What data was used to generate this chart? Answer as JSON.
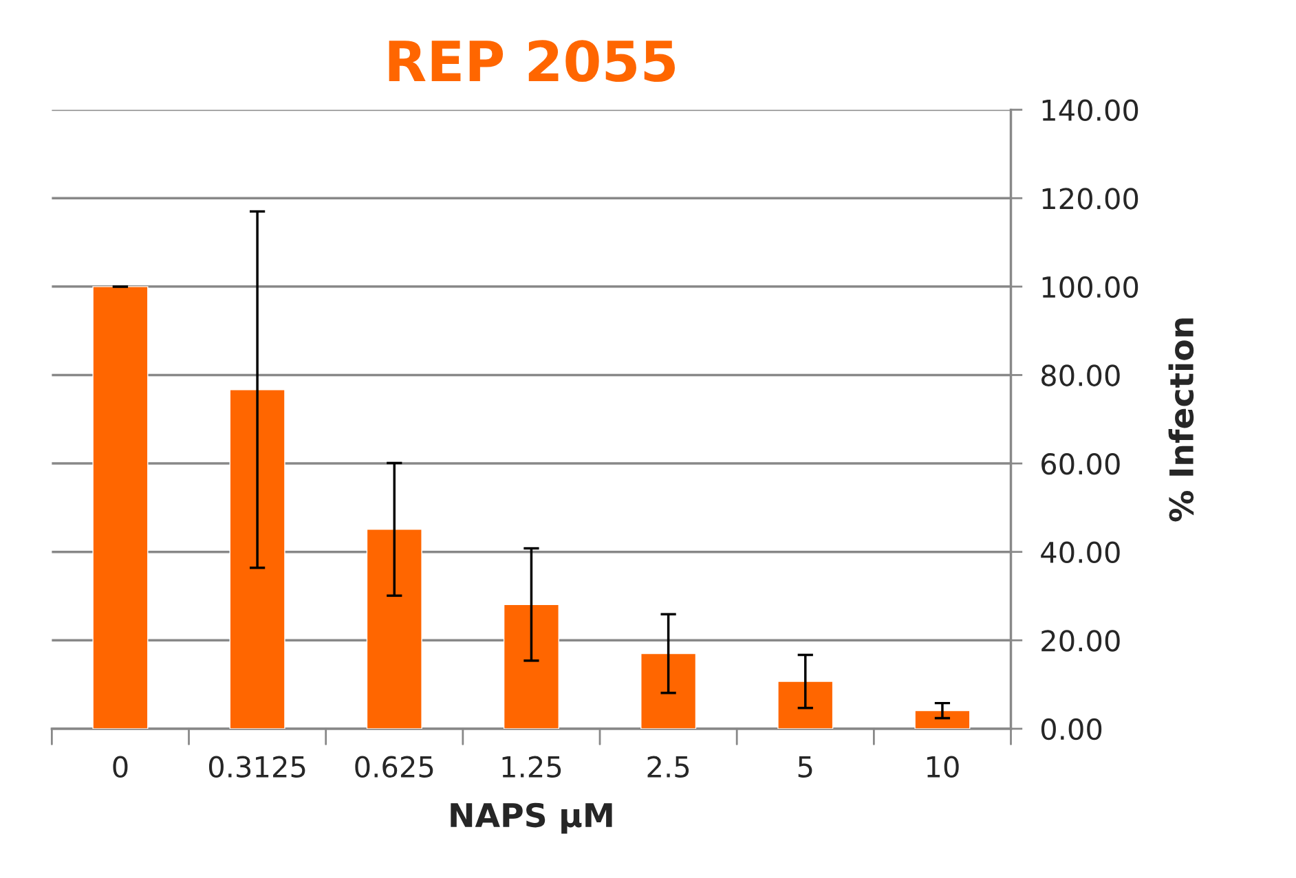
{
  "chart_data": {
    "type": "bar",
    "title": "REP 2055",
    "xlabel": "NAPS µM",
    "ylabel": "% Infection",
    "categories": [
      "0",
      "0.3125",
      "0.625",
      "1.25",
      "2.5",
      "5",
      "10"
    ],
    "values": [
      100,
      76.7,
      45.1,
      28.1,
      17.0,
      10.7,
      4.1
    ],
    "errors": [
      0,
      40.3,
      15.0,
      12.7,
      8.9,
      6.0,
      1.7
    ],
    "color": "#ff6600",
    "ylim": [
      0,
      140
    ],
    "yticks": [
      {
        "value": 0,
        "label": "0.00"
      },
      {
        "value": 20,
        "label": "20.00"
      },
      {
        "value": 40,
        "label": "40.00"
      },
      {
        "value": 60,
        "label": "60.00"
      },
      {
        "value": 80,
        "label": "80.00"
      },
      {
        "value": 100,
        "label": "100.00"
      },
      {
        "value": 120,
        "label": "120.00"
      },
      {
        "value": 140,
        "label": "140.00"
      }
    ],
    "grid": "y",
    "legend": false
  }
}
